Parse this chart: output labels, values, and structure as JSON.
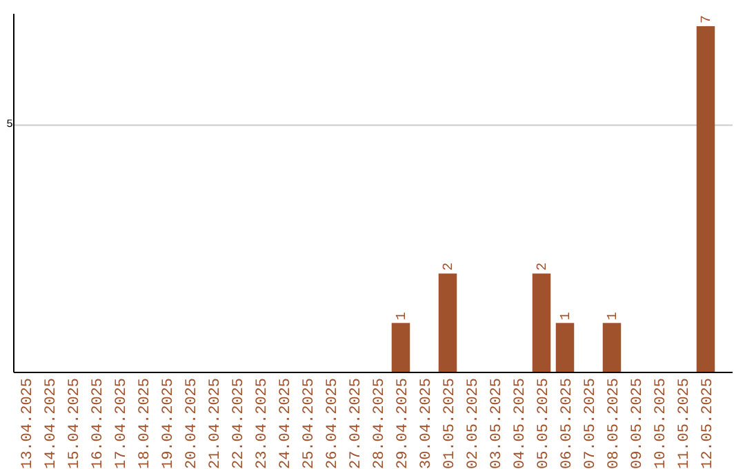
{
  "chart_data": {
    "type": "bar",
    "categories": [
      "13.04.2025",
      "14.04.2025",
      "15.04.2025",
      "16.04.2025",
      "17.04.2025",
      "18.04.2025",
      "19.04.2025",
      "20.04.2025",
      "21.04.2025",
      "22.04.2025",
      "23.04.2025",
      "24.04.2025",
      "25.04.2025",
      "26.04.2025",
      "27.04.2025",
      "28.04.2025",
      "29.04.2025",
      "30.04.2025",
      "01.05.2025",
      "02.05.2025",
      "03.05.2025",
      "04.05.2025",
      "05.05.2025",
      "06.05.2025",
      "07.05.2025",
      "08.05.2025",
      "09.05.2025",
      "10.05.2025",
      "11.05.2025",
      "12.05.2025"
    ],
    "values": [
      null,
      null,
      null,
      null,
      null,
      null,
      null,
      null,
      null,
      null,
      null,
      null,
      null,
      null,
      null,
      null,
      1,
      null,
      2,
      null,
      null,
      null,
      2,
      1,
      null,
      1,
      null,
      null,
      null,
      7
    ],
    "data_labels": true,
    "color": "#a0522d",
    "ylim": [
      0,
      7.25
    ],
    "yticks": [
      5
    ],
    "grid": "y"
  }
}
